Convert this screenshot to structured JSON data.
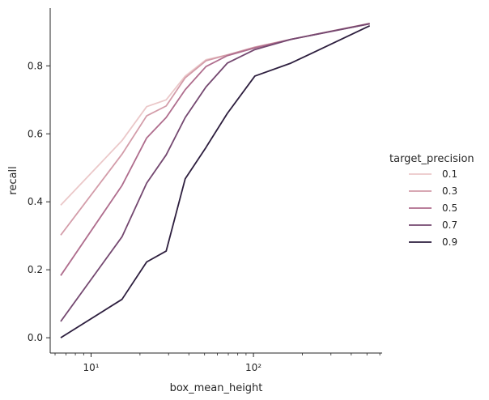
{
  "chart_data": {
    "type": "line",
    "title": "",
    "xlabel": "box_mean_height",
    "ylabel": "recall",
    "xscale": "log",
    "xlim": [
      5.6,
      620
    ],
    "ylim": [
      -0.045,
      0.97
    ],
    "x_ticks": [
      {
        "value": 10,
        "label": "10¹"
      },
      {
        "value": 100,
        "label": "10²"
      }
    ],
    "y_ticks": [
      0.0,
      0.2,
      0.4,
      0.6,
      0.8
    ],
    "y_tick_labels": [
      "0.0",
      "0.2",
      "0.4",
      "0.6",
      "0.8"
    ],
    "grid": false,
    "legend": {
      "title": "target_precision",
      "placement": "right"
    },
    "x": [
      6.5,
      15.5,
      22,
      29,
      38,
      51,
      69,
      102,
      170,
      520
    ],
    "series": [
      {
        "name": "0.1",
        "color": "#ebc8c9",
        "values": [
          0.39,
          0.58,
          0.68,
          0.7,
          0.77,
          0.818,
          0.832,
          0.855,
          0.878,
          0.925
        ]
      },
      {
        "name": "0.3",
        "color": "#d39ca9",
        "values": [
          0.302,
          0.54,
          0.653,
          0.682,
          0.765,
          0.815,
          0.832,
          0.855,
          0.878,
          0.925
        ]
      },
      {
        "name": "0.5",
        "color": "#af6d8d",
        "values": [
          0.183,
          0.448,
          0.588,
          0.648,
          0.73,
          0.798,
          0.83,
          0.853,
          0.878,
          0.924
        ]
      },
      {
        "name": "0.7",
        "color": "#744870",
        "values": [
          0.048,
          0.297,
          0.455,
          0.538,
          0.648,
          0.738,
          0.808,
          0.848,
          0.878,
          0.924
        ]
      },
      {
        "name": "0.9",
        "color": "#2d1e3e",
        "values": [
          0.0,
          0.113,
          0.223,
          0.255,
          0.468,
          0.56,
          0.66,
          0.77,
          0.808,
          0.918
        ]
      }
    ]
  }
}
